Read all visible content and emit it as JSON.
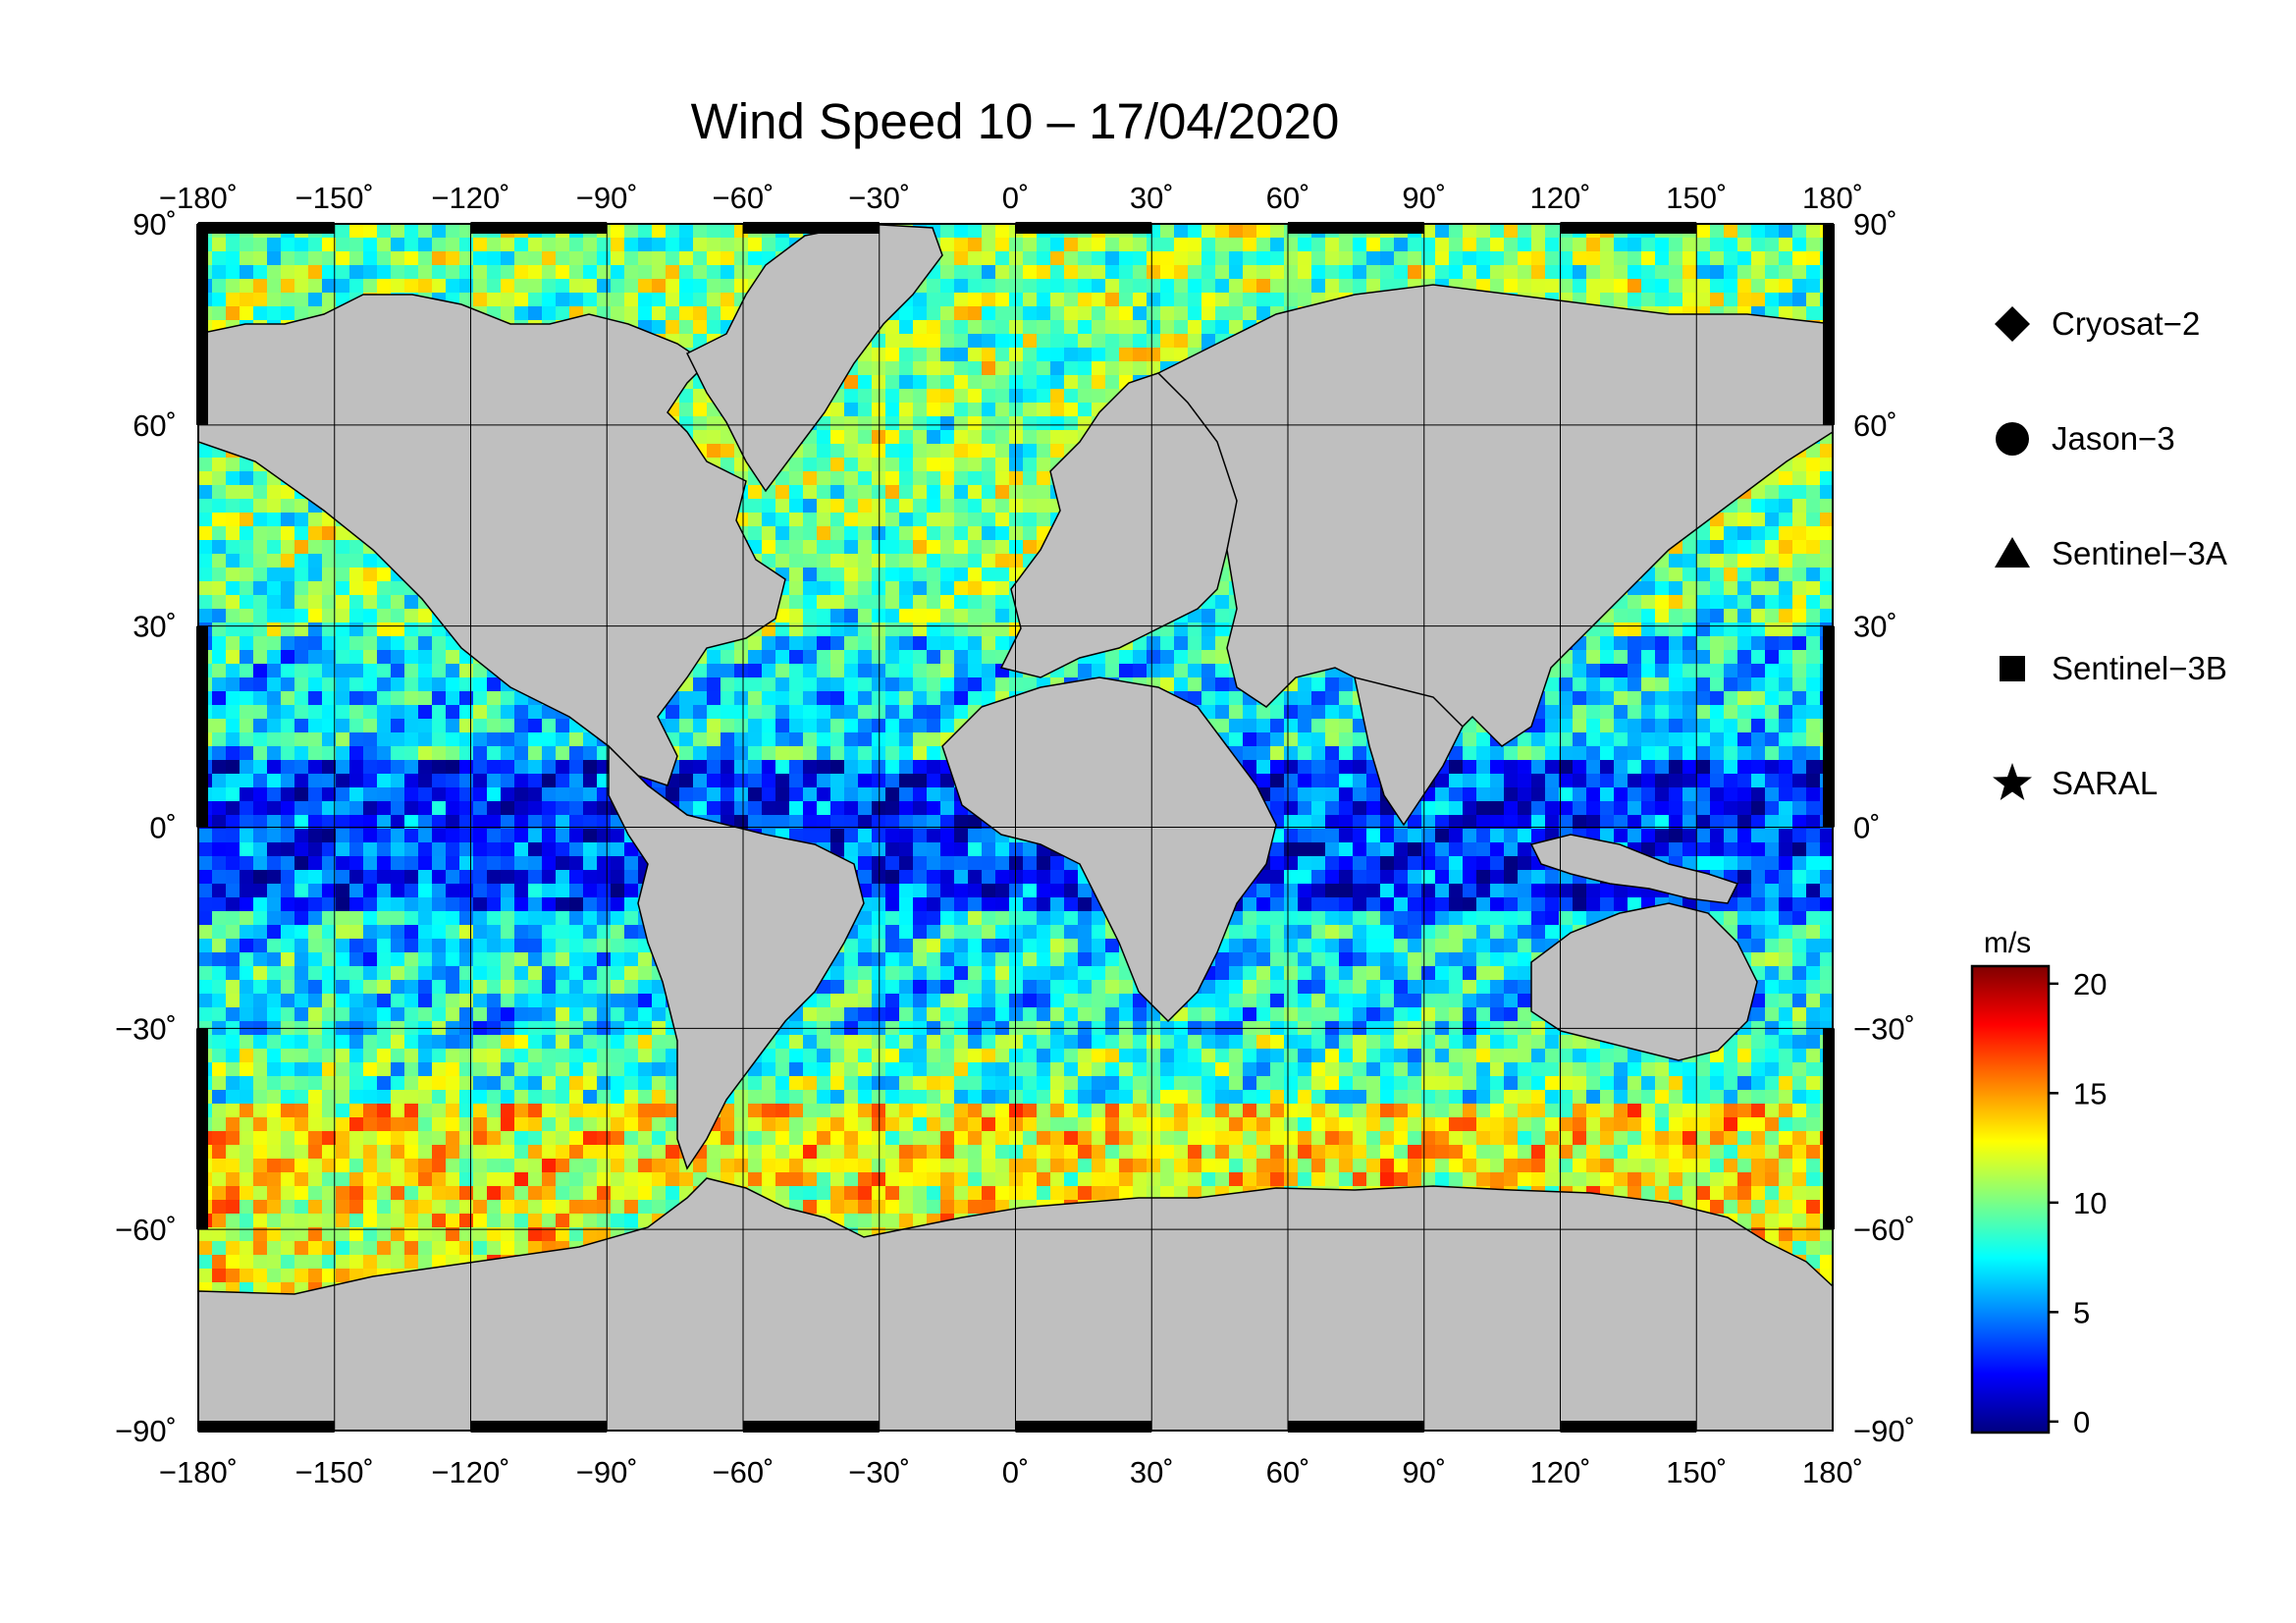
{
  "title": "Wind Speed 10 – 17/04/2020",
  "axes": {
    "lon_range": [
      -180,
      180
    ],
    "lat_range": [
      -90,
      90
    ],
    "lon_ticks": [
      "−180˚",
      "−150˚",
      "−120˚",
      "−90˚",
      "−60˚",
      "−30˚",
      "0˚",
      "30˚",
      "60˚",
      "90˚",
      "120˚",
      "150˚",
      "180˚"
    ],
    "lat_ticks": [
      "90˚",
      "60˚",
      "30˚",
      "0˚",
      "−30˚",
      "−60˚",
      "−90˚"
    ],
    "lon_values": [
      -180,
      -150,
      -120,
      -90,
      -60,
      -30,
      0,
      30,
      60,
      90,
      120,
      150,
      180
    ],
    "lat_values": [
      90,
      60,
      30,
      0,
      -30,
      -60,
      -90
    ],
    "grid": true
  },
  "legend": {
    "placement": "right",
    "items": [
      {
        "label": "Cryosat−2",
        "marker": "diamond"
      },
      {
        "label": "Jason−3",
        "marker": "circle"
      },
      {
        "label": "Sentinel−3A",
        "marker": "triangle"
      },
      {
        "label": "Sentinel−3B",
        "marker": "square"
      },
      {
        "label": "SARAL",
        "marker": "star"
      }
    ]
  },
  "colorbar": {
    "unit": "m/s",
    "range": [
      -0.5,
      20.8
    ],
    "ticks": [
      "0",
      "5",
      "10",
      "15",
      "20"
    ],
    "tick_values": [
      0,
      5,
      10,
      15,
      20
    ],
    "colors": [
      "#000080",
      "#0000ff",
      "#0080ff",
      "#00ffff",
      "#80ff80",
      "#ffff00",
      "#ff8000",
      "#ff0000",
      "#800000"
    ]
  },
  "colors": {
    "land": "#bfbfbf",
    "ice": "#ffffff",
    "grid": "#000000",
    "frame": "#000000"
  }
}
